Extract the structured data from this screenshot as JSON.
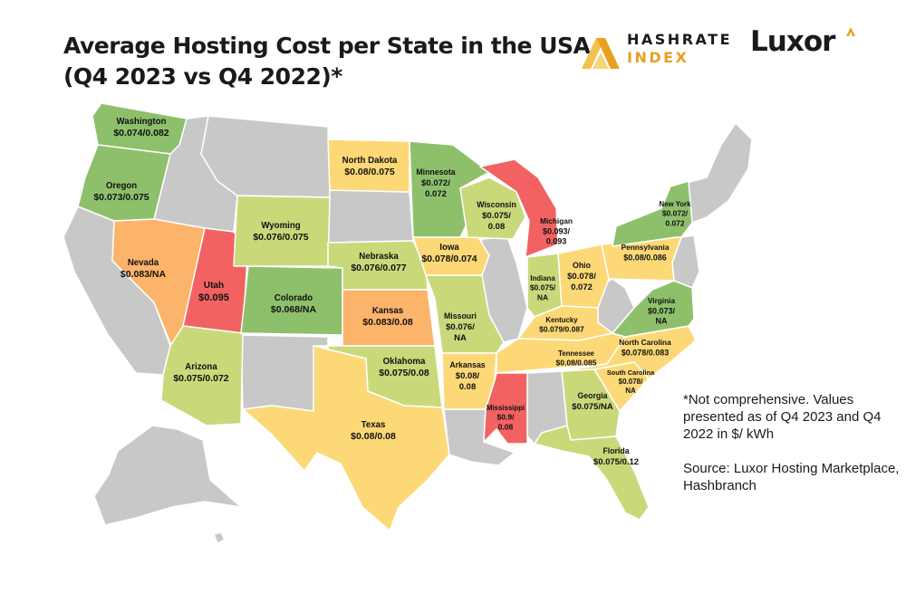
{
  "title_lines": [
    "Average Hosting Cost per State in the USA",
    "(Q4 2023 vs Q4 2022)*"
  ],
  "brand": {
    "hashrate_line1": "HASHRATE",
    "hashrate_line2": "INDEX",
    "luxor": "Luxor"
  },
  "colors": {
    "green": "#8ec06c",
    "light_green": "#c9d97a",
    "yellow": "#fcd877",
    "orange": "#fbb46a",
    "red": "#f26262",
    "gray": "#c8c8c8",
    "accent": "#e8a020"
  },
  "states": [
    {
      "name": "Washington",
      "value": "$0.074/0.082",
      "color": "green"
    },
    {
      "name": "Oregon",
      "value": "$0.073/0.075",
      "color": "green"
    },
    {
      "name": "Nevada",
      "value": "$0.083/NA",
      "color": "orange"
    },
    {
      "name": "Utah",
      "value": "$0.095",
      "color": "red"
    },
    {
      "name": "Arizona",
      "value": "$0.075/0.072",
      "color": "light_green"
    },
    {
      "name": "Wyoming",
      "value": "$0.076/0.075",
      "color": "light_green"
    },
    {
      "name": "Colorado",
      "value": "$0.068/NA",
      "color": "green"
    },
    {
      "name": "North Dakota",
      "value": "$0.08/0.075",
      "color": "yellow"
    },
    {
      "name": "Nebraska",
      "value": "$0.076/0.077",
      "color": "light_green"
    },
    {
      "name": "Kansas",
      "value": "$0.083/0.08",
      "color": "orange"
    },
    {
      "name": "Oklahoma",
      "value": "$0.075/0.08",
      "color": "light_green"
    },
    {
      "name": "Texas",
      "value": "$0.08/0.08",
      "color": "yellow"
    },
    {
      "name": "Minnesota",
      "value": "$0.072/\n0.072",
      "color": "green"
    },
    {
      "name": "Iowa",
      "value": "$0.078/0.074",
      "color": "yellow"
    },
    {
      "name": "Missouri",
      "value": "$0.076/\nNA",
      "color": "light_green"
    },
    {
      "name": "Arkansas",
      "value": "$0.08/\n0.08",
      "color": "yellow"
    },
    {
      "name": "Wisconsin",
      "value": "$0.075/\n0.08",
      "color": "light_green"
    },
    {
      "name": "Michigan",
      "value": "$0.093/\n0.093",
      "color": "red"
    },
    {
      "name": "Indiana",
      "value": "$0.075/\nNA",
      "color": "light_green"
    },
    {
      "name": "Ohio",
      "value": "$0.078/\n0.072",
      "color": "yellow"
    },
    {
      "name": "Kentucky",
      "value": "$0.079/0.087",
      "color": "yellow"
    },
    {
      "name": "Tennessee",
      "value": "$0.08/0.085",
      "color": "yellow"
    },
    {
      "name": "Mississippi",
      "value": "$0.9/\n0.08",
      "color": "red"
    },
    {
      "name": "Georgia",
      "value": "$0.075/NA",
      "color": "light_green"
    },
    {
      "name": "Florida",
      "value": "$0.075/0.12",
      "color": "light_green"
    },
    {
      "name": "South Carolina",
      "value": "$0.078/\nNA",
      "color": "yellow"
    },
    {
      "name": "North Carolina",
      "value": "$0.078/0.083",
      "color": "yellow"
    },
    {
      "name": "Virginia",
      "value": "$0.073/\nNA",
      "color": "green"
    },
    {
      "name": "Pennsylvania",
      "value": "$0.08/0.086",
      "color": "yellow"
    },
    {
      "name": "New York",
      "value": "$0.072/\n0.072",
      "color": "green"
    }
  ],
  "note": "*Not comprehensive. Values presented as of Q4 2023 and Q4 2022 in $/ kWh",
  "source": "Source: Luxor Hosting Marketplace, Hashbranch"
}
